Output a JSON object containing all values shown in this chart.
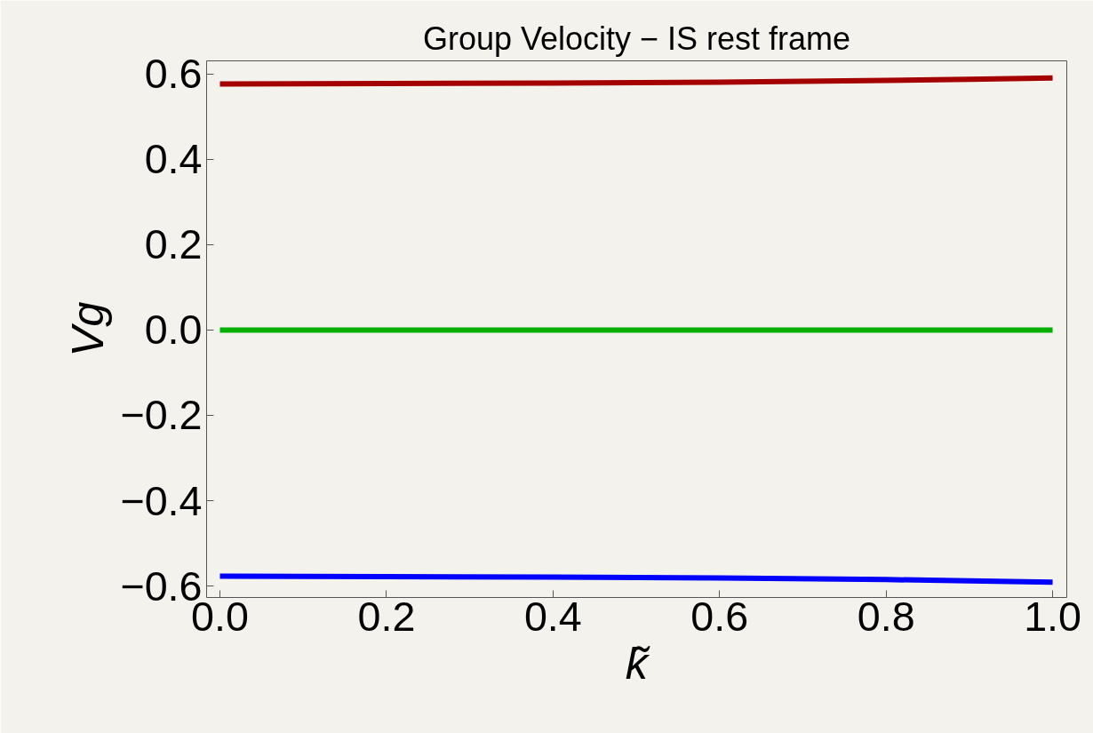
{
  "chart_data": {
    "type": "line",
    "title": "Group Velocity − IS rest frame",
    "xlabel": "k̃",
    "ylabel": "Vg",
    "x": [
      0,
      0.2,
      0.4,
      0.6,
      0.8,
      0.9,
      1.0
    ],
    "series": [
      {
        "color": "#a50000",
        "values": [
          0.577,
          0.578,
          0.579,
          0.581,
          0.585,
          0.588,
          0.591
        ]
      },
      {
        "color": "#00b000",
        "values": [
          0,
          0,
          0,
          0,
          0,
          0,
          0
        ]
      },
      {
        "color": "#0000ff",
        "values": [
          -0.577,
          -0.578,
          -0.579,
          -0.581,
          -0.585,
          -0.588,
          -0.591
        ]
      }
    ],
    "xlim": [
      -0.016,
      1.017
    ],
    "ylim": [
      -0.627,
      0.631
    ],
    "xticks": [
      {
        "value": 0,
        "label": "0.0"
      },
      0.2,
      0.4,
      0.6,
      0.8,
      {
        "value": 1,
        "label": "1.0"
      }
    ],
    "yticks": [
      {
        "value": -0.6,
        "label": "−0.6"
      },
      {
        "value": -0.4,
        "label": "−0.4"
      },
      {
        "value": -0.2,
        "label": "−0.2"
      },
      {
        "value": 0,
        "label": "0.0"
      },
      0.2,
      0.4,
      0.6
    ],
    "grid": false,
    "marker": "none",
    "line_style": "solid"
  }
}
